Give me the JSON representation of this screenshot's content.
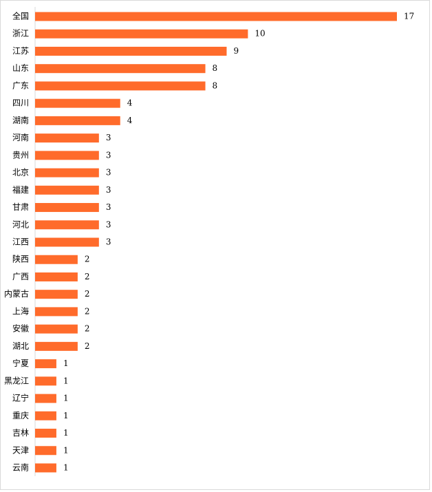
{
  "chart_data": {
    "type": "bar",
    "orientation": "horizontal",
    "color": "#ff6b2b",
    "categories": [
      "全国",
      "浙江",
      "江苏",
      "山东",
      "广东",
      "四川",
      "湖南",
      "河南",
      "贵州",
      "北京",
      "福建",
      "甘肃",
      "河北",
      "江西",
      "陕西",
      "广西",
      "内蒙古",
      "上海",
      "安徽",
      "湖北",
      "宁夏",
      "黑龙江",
      "辽宁",
      "重庆",
      "吉林",
      "天津",
      "云南"
    ],
    "values": [
      17,
      10,
      9,
      8,
      8,
      4,
      4,
      3,
      3,
      3,
      3,
      3,
      3,
      3,
      2,
      2,
      2,
      2,
      2,
      2,
      1,
      1,
      1,
      1,
      1,
      1,
      1
    ]
  }
}
